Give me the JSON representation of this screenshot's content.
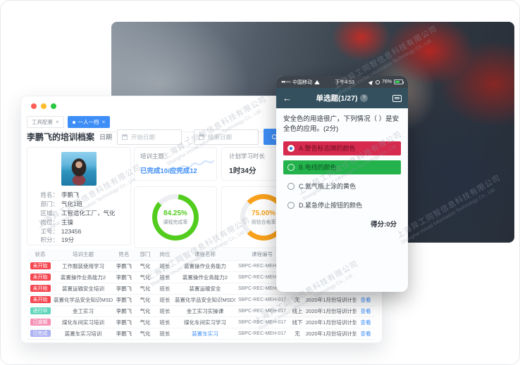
{
  "watermark": {
    "line1": "上海异工同智信息科技有限公司",
    "line2": "Shanghai Inroad Information Technology Co., Ltd."
  },
  "desktop": {
    "tabs": [
      {
        "label": "工具配置",
        "close": "×",
        "active": false
      },
      {
        "label": "一人一档",
        "close": "×",
        "active": true
      }
    ],
    "toolbar": {
      "title": "李鹏飞的培训档案",
      "date_label": "日期",
      "start_placeholder": "开始日期",
      "end_placeholder": "结束日期",
      "separator": "-",
      "search_label": "查询"
    },
    "profile": {
      "fields": [
        {
          "label": "姓名：",
          "value": "李鹏飞"
        },
        {
          "label": "部门：",
          "value": "气化1班"
        },
        {
          "label": "区域：",
          "value": "工智造化工厂，气化"
        },
        {
          "label": "岗位：",
          "value": "主操"
        },
        {
          "label": "工号：",
          "value": "123456"
        },
        {
          "label": "积分：",
          "value": "19分"
        }
      ]
    },
    "summary": {
      "topic_label": "培训主题:",
      "topic_value": "已完成10/应完成12",
      "plan_label": "计划学习时长",
      "plan_value": "1时34分"
    },
    "donuts": [
      {
        "value": "84.25%",
        "label": "课程完成率",
        "percent": 84.25,
        "color": "#52cc1d",
        "gap_from": 8
      },
      {
        "value": "75.00%",
        "label": "测验合格率",
        "percent": 75,
        "color": "#f9a11b",
        "gap_from": 315
      }
    ],
    "table": {
      "headers": [
        "状态",
        "培训主题",
        "姓名",
        "部门",
        "岗位",
        "课程名称",
        "课程编号",
        "",
        "",
        ""
      ],
      "rows": [
        {
          "status": "未开始",
          "status_type": "red",
          "topic": "工作服装使用学习",
          "name": "李鹏飞",
          "dept": "气化",
          "post": "班长",
          "course": "装置操作业务能力",
          "course_link": false,
          "code": "SBPC-REC-MEH-017",
          "mode": "",
          "plan": "",
          "action": ""
        },
        {
          "status": "未开始",
          "status_type": "red",
          "topic": "装置操作业务能力2",
          "name": "李鹏飞",
          "dept": "气化",
          "post": "班长",
          "course": "装置操作业务能力2",
          "course_link": false,
          "code": "SBPC-REC-MEH-017",
          "mode": "",
          "plan": "",
          "action": ""
        },
        {
          "status": "未开始",
          "status_type": "red",
          "topic": "装置运输安全培训",
          "name": "李鹏飞",
          "dept": "气化",
          "post": "班长",
          "course": "装置运输安全",
          "course_link": false,
          "code": "SBPC-REC-MEH-017",
          "mode": "",
          "plan": "",
          "action": ""
        },
        {
          "status": "未开始",
          "status_type": "red",
          "topic": "装置化学品安全知识MSDS",
          "name": "李鹏飞",
          "dept": "气化",
          "post": "班长",
          "course": "装置化学品安全知识MSDS",
          "course_link": false,
          "code": "SBPC-REC-MEH-017",
          "mode": "无",
          "plan": "2020年1月份培训计划",
          "action": "查看"
        },
        {
          "status": "进行中",
          "status_type": "teal",
          "topic": "金工实习",
          "name": "李鹏飞",
          "dept": "气化",
          "post": "班长",
          "course": "金工实习实操课",
          "course_link": false,
          "code": "SBPC-REC-MEH-017",
          "mode": "线上",
          "plan": "2020年1月份培训计划",
          "action": "查看"
        },
        {
          "status": "已逾期",
          "status_type": "pink",
          "topic": "煤化车间实习培训",
          "name": "李鹏飞",
          "dept": "气化",
          "post": "班长",
          "course": "煤化车间实习学习",
          "course_link": false,
          "code": "SBPC-REC-MEH-017",
          "mode": "线下",
          "plan": "2020年1月份培训计划",
          "action": "查看"
        },
        {
          "status": "已完成",
          "status_type": "purple",
          "topic": "装置车实习培训",
          "name": "李鹏飞",
          "dept": "气化",
          "post": "班长",
          "course": "装置车实习",
          "course_link": true,
          "code": "SBPC-REC-MEH-017",
          "mode": "无",
          "plan": "2020年1月份培训计划",
          "action": "查看"
        }
      ]
    }
  },
  "phone": {
    "status_bar": {
      "signal_dots": "●●○○○",
      "carrier": "中国移动",
      "time": "下午4:53",
      "battery_pct": "76%"
    },
    "nav": {
      "back": "←",
      "title": "单选题(1/27)",
      "help": "?"
    },
    "question": "安全色的用途很广，下列情况（ ）是安全色的应用。(2分)",
    "options": [
      {
        "label": "A.警告标志牌的颜色",
        "state": "wrong",
        "selected": true
      },
      {
        "label": "B.电线的颜色",
        "state": "correct",
        "selected": false
      },
      {
        "label": "C.氮气瓶上涂的黄色",
        "state": "normal",
        "selected": false
      },
      {
        "label": "D.紧急停止按钮的颜色",
        "state": "normal",
        "selected": false
      }
    ],
    "score": "得分:0分"
  },
  "colors": {
    "accent": "#3e8ef7",
    "wrong_red": "#d62a4e",
    "correct_green": "#23b24b",
    "status_red": "#f5454f",
    "status_teal": "#62d7bd",
    "status_pink": "#f590b4",
    "status_purple": "#adb2f3"
  }
}
